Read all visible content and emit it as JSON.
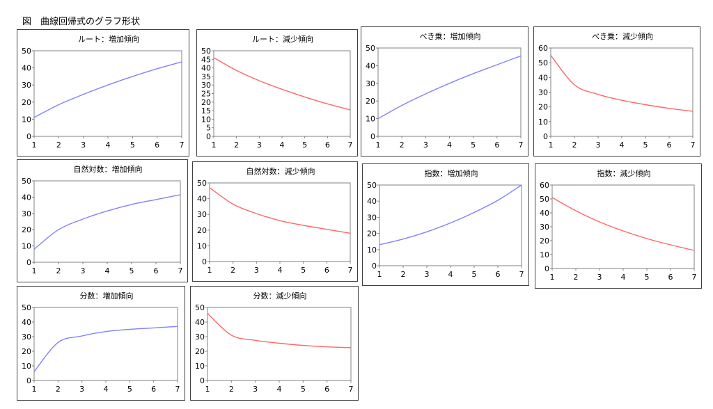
{
  "figure_title": "図　曲線回帰式のグラフ形状",
  "colors": {
    "increasing": "#8080ff",
    "decreasing": "#ff6666",
    "axis": "#808080",
    "frame": "#404040"
  },
  "chart_data": [
    {
      "type": "line",
      "title": "ルート：増加傾向",
      "categories": [
        1,
        2,
        3,
        4,
        5,
        6,
        7
      ],
      "ylim": [
        0,
        50
      ],
      "yticks": [
        0,
        10,
        20,
        30,
        40,
        50
      ],
      "series": [
        {
          "color": "#8080ff",
          "values": [
            11,
            18.5,
            24.5,
            30,
            35,
            39.5,
            43.5
          ]
        }
      ]
    },
    {
      "type": "line",
      "title": "ルート：減少傾向",
      "categories": [
        1,
        2,
        3,
        4,
        5,
        6,
        7
      ],
      "ylim": [
        0,
        50
      ],
      "yticks": [
        0,
        5,
        10,
        15,
        20,
        25,
        30,
        35,
        40,
        45,
        50
      ],
      "series": [
        {
          "color": "#ff6666",
          "values": [
            46,
            38.5,
            32.5,
            27.5,
            23,
            19,
            15.5
          ]
        }
      ]
    },
    {
      "type": "line",
      "title": "べき乗：増加傾向",
      "categories": [
        1,
        2,
        3,
        4,
        5,
        6,
        7
      ],
      "ylim": [
        0,
        50
      ],
      "yticks": [
        0,
        10,
        20,
        30,
        40,
        50
      ],
      "series": [
        {
          "color": "#8080ff",
          "values": [
            10,
            17.5,
            24,
            30,
            35.5,
            40.5,
            45.5
          ]
        }
      ]
    },
    {
      "type": "line",
      "title": "べき乗：減少傾向",
      "categories": [
        1,
        2,
        3,
        4,
        5,
        6,
        7
      ],
      "ylim": [
        0,
        60
      ],
      "yticks": [
        0,
        10,
        20,
        30,
        40,
        50,
        60
      ],
      "series": [
        {
          "color": "#ff6666",
          "values": [
            55,
            35,
            28.5,
            24.5,
            21.5,
            19,
            17
          ]
        }
      ]
    },
    {
      "type": "line",
      "title": "自然対数：増加傾向",
      "categories": [
        1,
        2,
        3,
        4,
        5,
        6,
        7
      ],
      "ylim": [
        0,
        50
      ],
      "yticks": [
        0,
        10,
        20,
        30,
        40,
        50
      ],
      "series": [
        {
          "color": "#8080ff",
          "values": [
            8,
            20,
            26.5,
            31.5,
            35.5,
            38.5,
            41.5
          ]
        }
      ]
    },
    {
      "type": "line",
      "title": "自然対数：減少傾向",
      "categories": [
        1,
        2,
        3,
        4,
        5,
        6,
        7
      ],
      "ylim": [
        0,
        50
      ],
      "yticks": [
        0,
        10,
        20,
        30,
        40,
        50
      ],
      "series": [
        {
          "color": "#ff6666",
          "values": [
            47,
            36.5,
            30.5,
            26,
            23,
            20.5,
            18
          ]
        }
      ]
    },
    {
      "type": "line",
      "title": "指数：増加傾向",
      "categories": [
        1,
        2,
        3,
        4,
        5,
        6,
        7
      ],
      "ylim": [
        0,
        50
      ],
      "yticks": [
        0,
        10,
        20,
        30,
        40,
        50
      ],
      "series": [
        {
          "color": "#8080ff",
          "values": [
            13,
            16.5,
            21,
            26.5,
            33,
            40.5,
            50
          ]
        }
      ]
    },
    {
      "type": "line",
      "title": "指数：減少傾向",
      "categories": [
        1,
        2,
        3,
        4,
        5,
        6,
        7
      ],
      "ylim": [
        0,
        60
      ],
      "yticks": [
        0,
        10,
        20,
        30,
        40,
        50,
        60
      ],
      "series": [
        {
          "color": "#ff6666",
          "values": [
            51,
            41.5,
            33.5,
            27,
            21.5,
            17,
            13
          ]
        }
      ]
    },
    {
      "type": "line",
      "title": "分数：増加傾向",
      "categories": [
        1,
        2,
        3,
        4,
        5,
        6,
        7
      ],
      "ylim": [
        0,
        50
      ],
      "yticks": [
        0,
        10,
        20,
        30,
        40,
        50
      ],
      "series": [
        {
          "color": "#8080ff",
          "values": [
            6,
            26,
            30.5,
            33.5,
            35,
            36,
            37
          ]
        }
      ]
    },
    {
      "type": "line",
      "title": "分数：減少傾向",
      "categories": [
        1,
        2,
        3,
        4,
        5,
        6,
        7
      ],
      "ylim": [
        0,
        50
      ],
      "yticks": [
        0,
        10,
        20,
        30,
        40,
        50
      ],
      "series": [
        {
          "color": "#ff6666",
          "values": [
            46,
            31,
            27.5,
            25.5,
            24,
            23,
            22.5
          ]
        }
      ]
    }
  ]
}
